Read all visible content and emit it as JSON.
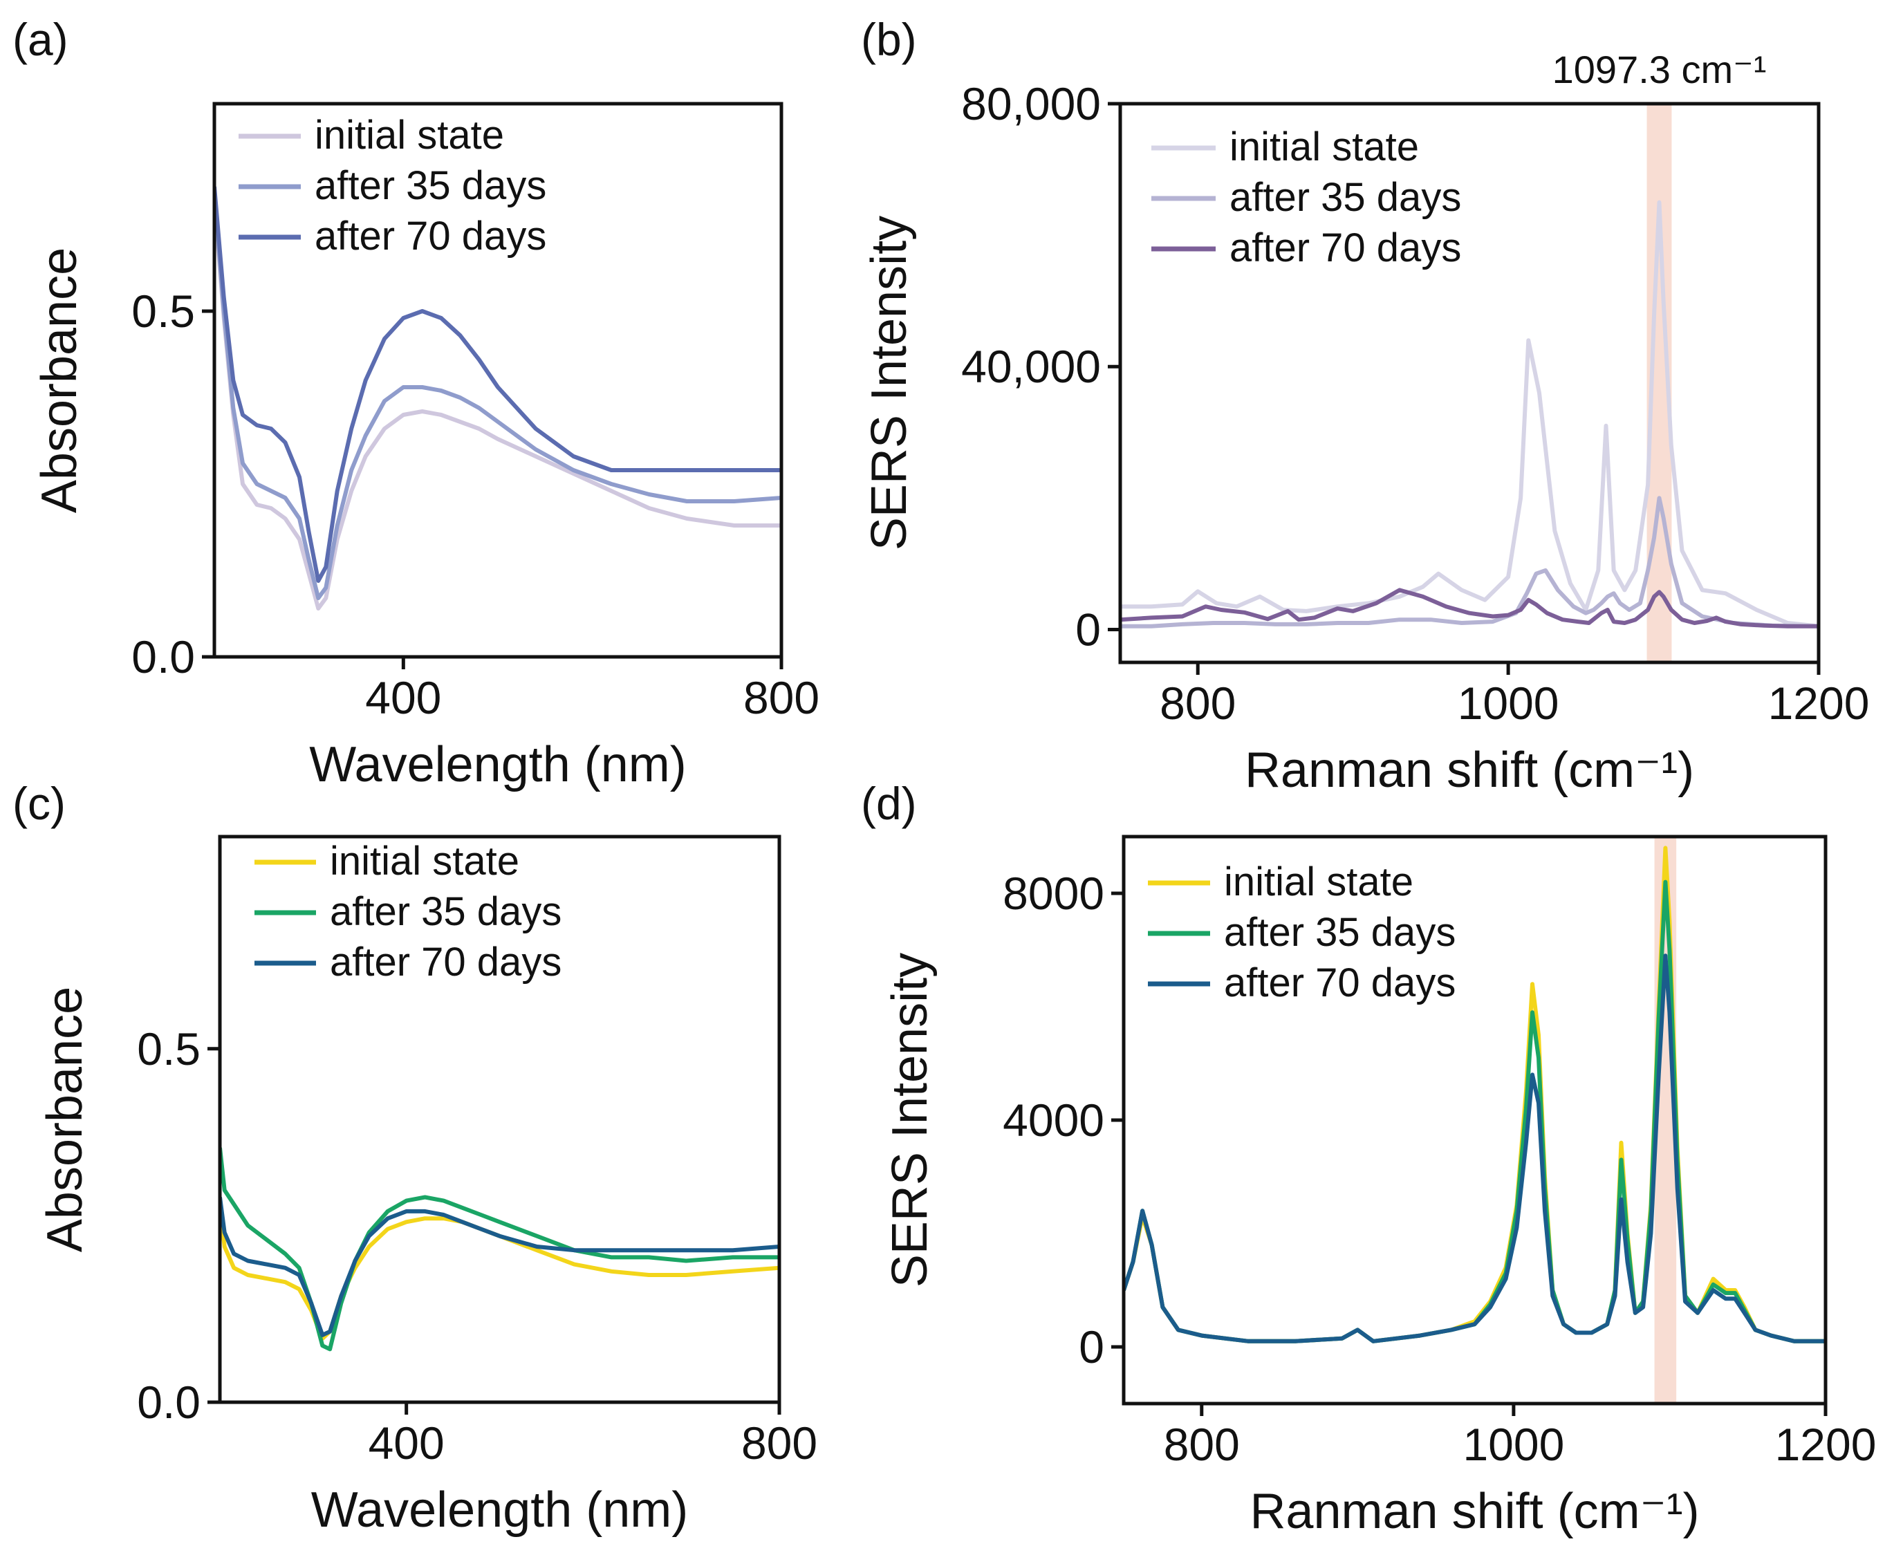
{
  "chart_data": [
    {
      "panel": "(a)",
      "type": "line",
      "xlabel": "Wavelength (nm)",
      "ylabel": "Absorbance",
      "xlim": [
        200,
        800
      ],
      "ylim": [
        0,
        0.8
      ],
      "xticks": [
        400,
        800
      ],
      "yticks": [
        0.0,
        0.5
      ],
      "ytick_labels": [
        "0.0",
        "0.5"
      ],
      "legend": "top-left",
      "series": [
        {
          "name": "initial state",
          "color": "#cfc7de",
          "x": [
            200,
            210,
            220,
            230,
            245,
            260,
            275,
            290,
            300,
            310,
            318,
            330,
            345,
            360,
            380,
            400,
            420,
            440,
            460,
            480,
            500,
            540,
            580,
            620,
            660,
            700,
            750,
            800
          ],
          "y": [
            0.66,
            0.49,
            0.35,
            0.25,
            0.22,
            0.215,
            0.2,
            0.17,
            0.12,
            0.07,
            0.085,
            0.17,
            0.24,
            0.29,
            0.33,
            0.35,
            0.355,
            0.35,
            0.34,
            0.33,
            0.315,
            0.29,
            0.265,
            0.24,
            0.215,
            0.2,
            0.19,
            0.19
          ]
        },
        {
          "name": "after 35 days",
          "color": "#8f9ccc",
          "x": [
            200,
            210,
            220,
            230,
            245,
            260,
            275,
            290,
            300,
            310,
            318,
            330,
            345,
            360,
            380,
            400,
            420,
            440,
            460,
            480,
            500,
            540,
            580,
            620,
            660,
            700,
            750,
            800
          ],
          "y": [
            0.67,
            0.5,
            0.36,
            0.28,
            0.25,
            0.24,
            0.23,
            0.2,
            0.14,
            0.085,
            0.1,
            0.19,
            0.27,
            0.32,
            0.37,
            0.39,
            0.39,
            0.385,
            0.375,
            0.36,
            0.34,
            0.3,
            0.27,
            0.25,
            0.235,
            0.225,
            0.225,
            0.23
          ]
        },
        {
          "name": "after 70 days",
          "color": "#5b6cb0",
          "x": [
            200,
            210,
            220,
            230,
            245,
            260,
            275,
            290,
            300,
            310,
            318,
            330,
            345,
            360,
            380,
            400,
            420,
            440,
            460,
            480,
            500,
            540,
            580,
            620,
            660,
            700,
            750,
            800
          ],
          "y": [
            0.68,
            0.52,
            0.4,
            0.35,
            0.335,
            0.33,
            0.31,
            0.26,
            0.18,
            0.11,
            0.13,
            0.24,
            0.33,
            0.4,
            0.46,
            0.49,
            0.5,
            0.49,
            0.465,
            0.43,
            0.39,
            0.33,
            0.29,
            0.27,
            0.27,
            0.27,
            0.27,
            0.27
          ]
        }
      ]
    },
    {
      "panel": "(b)",
      "type": "line",
      "xlabel": "Ranman shift (cm⁻¹)",
      "ylabel": "SERS Intensity",
      "xlim": [
        750,
        1200
      ],
      "ylim": [
        -5000,
        80000
      ],
      "xticks": [
        800,
        1000,
        1200
      ],
      "yticks": [
        0,
        40000,
        80000
      ],
      "ytick_labels": [
        "0",
        "40,000",
        "80,000"
      ],
      "legend": "top-left",
      "highlight": {
        "center": 1097.3,
        "width": 16,
        "color": "#f8ddd3"
      },
      "annotation": "1097.3 cm⁻¹",
      "series": [
        {
          "name": "initial state",
          "color": "#d6d4e6",
          "x": [
            750,
            770,
            790,
            800,
            812,
            825,
            840,
            855,
            870,
            890,
            910,
            930,
            945,
            955,
            970,
            985,
            1000,
            1008,
            1013,
            1020,
            1030,
            1040,
            1050,
            1058,
            1063,
            1068,
            1075,
            1082,
            1090,
            1094,
            1097.3,
            1100,
            1105,
            1112,
            1125,
            1140,
            1160,
            1180,
            1200
          ],
          "y": [
            3500,
            3500,
            3800,
            5800,
            4000,
            3500,
            5000,
            3000,
            2800,
            3500,
            4000,
            5000,
            6500,
            8500,
            6000,
            4500,
            8000,
            20000,
            44000,
            36000,
            15000,
            7000,
            3000,
            9000,
            31000,
            9000,
            6000,
            9000,
            22000,
            48000,
            65000,
            50000,
            28000,
            12000,
            6000,
            5500,
            3000,
            1000,
            500
          ]
        },
        {
          "name": "after 35 days",
          "color": "#b5b3d3",
          "x": [
            750,
            770,
            790,
            810,
            830,
            850,
            870,
            890,
            910,
            930,
            950,
            970,
            990,
            1005,
            1012,
            1018,
            1024,
            1032,
            1042,
            1050,
            1055,
            1060,
            1064,
            1068,
            1072,
            1078,
            1085,
            1090,
            1094,
            1097.3,
            1100,
            1105,
            1112,
            1125,
            1145,
            1170,
            1200
          ],
          "y": [
            500,
            500,
            800,
            1000,
            1000,
            800,
            800,
            1000,
            1000,
            1500,
            1500,
            1000,
            1200,
            2500,
            5500,
            8500,
            9000,
            6000,
            3500,
            2500,
            3000,
            4000,
            5000,
            5500,
            4000,
            3000,
            4000,
            9000,
            14000,
            20000,
            17000,
            10000,
            4000,
            2000,
            1000,
            600,
            500
          ]
        },
        {
          "name": "after 70 days",
          "color": "#7c5f98",
          "x": [
            750,
            770,
            790,
            805,
            815,
            830,
            845,
            858,
            865,
            875,
            890,
            900,
            915,
            930,
            945,
            960,
            975,
            990,
            1000,
            1008,
            1013,
            1018,
            1025,
            1035,
            1045,
            1052,
            1060,
            1064,
            1068,
            1075,
            1082,
            1090,
            1094,
            1097.3,
            1100,
            1105,
            1112,
            1120,
            1128,
            1134,
            1140,
            1150,
            1165,
            1180,
            1200
          ],
          "y": [
            1500,
            1800,
            2000,
            3500,
            3000,
            2600,
            1600,
            2800,
            1500,
            1800,
            3200,
            2800,
            4000,
            6000,
            5000,
            3500,
            2500,
            2000,
            2200,
            3000,
            4500,
            3800,
            2500,
            1500,
            1200,
            1000,
            2500,
            3000,
            1200,
            1000,
            1500,
            3000,
            5000,
            5700,
            5000,
            3000,
            1500,
            1000,
            1300,
            1800,
            1200,
            800,
            600,
            500,
            500
          ]
        }
      ]
    },
    {
      "panel": "(c)",
      "type": "line",
      "xlabel": "Wavelength (nm)",
      "ylabel": "Absorbance",
      "xlim": [
        200,
        800
      ],
      "ylim": [
        0,
        0.8
      ],
      "xticks": [
        400,
        800
      ],
      "yticks": [
        0.0,
        0.5
      ],
      "ytick_labels": [
        "0.0",
        "0.5"
      ],
      "legend": "top-left",
      "series": [
        {
          "name": "initial state",
          "color": "#f3d51a",
          "x": [
            200,
            205,
            215,
            230,
            250,
            270,
            285,
            298,
            310,
            318,
            330,
            345,
            360,
            380,
            400,
            420,
            440,
            460,
            480,
            500,
            540,
            580,
            620,
            660,
            700,
            750,
            800
          ],
          "y": [
            0.28,
            0.22,
            0.19,
            0.18,
            0.175,
            0.17,
            0.16,
            0.13,
            0.09,
            0.1,
            0.15,
            0.19,
            0.22,
            0.245,
            0.255,
            0.26,
            0.26,
            0.255,
            0.245,
            0.235,
            0.215,
            0.195,
            0.185,
            0.18,
            0.18,
            0.185,
            0.19
          ]
        },
        {
          "name": "after 35 days",
          "color": "#1aa565",
          "x": [
            200,
            205,
            215,
            230,
            250,
            270,
            285,
            298,
            310,
            318,
            330,
            345,
            360,
            380,
            400,
            420,
            440,
            460,
            480,
            500,
            540,
            580,
            620,
            660,
            700,
            750,
            800
          ],
          "y": [
            0.36,
            0.3,
            0.28,
            0.25,
            0.23,
            0.21,
            0.19,
            0.14,
            0.08,
            0.075,
            0.14,
            0.2,
            0.24,
            0.27,
            0.285,
            0.29,
            0.285,
            0.275,
            0.265,
            0.255,
            0.235,
            0.215,
            0.205,
            0.205,
            0.2,
            0.205,
            0.205
          ]
        },
        {
          "name": "after 70 days",
          "color": "#1b5c8c",
          "x": [
            200,
            205,
            215,
            230,
            250,
            270,
            285,
            298,
            310,
            318,
            330,
            345,
            360,
            380,
            400,
            420,
            440,
            460,
            480,
            500,
            540,
            580,
            620,
            660,
            700,
            750,
            800
          ],
          "y": [
            0.29,
            0.24,
            0.21,
            0.2,
            0.195,
            0.19,
            0.18,
            0.14,
            0.095,
            0.1,
            0.15,
            0.2,
            0.235,
            0.26,
            0.27,
            0.27,
            0.265,
            0.255,
            0.245,
            0.235,
            0.22,
            0.215,
            0.215,
            0.215,
            0.215,
            0.215,
            0.22
          ]
        }
      ]
    },
    {
      "panel": "(d)",
      "type": "line",
      "xlabel": "Ranman shift (cm⁻¹)",
      "ylabel": "SERS Intensity",
      "xlim": [
        750,
        1200
      ],
      "ylim": [
        -1000,
        9000
      ],
      "xticks": [
        800,
        1000,
        1200
      ],
      "yticks": [
        0,
        4000,
        8000
      ],
      "ytick_labels": [
        "0",
        "4000",
        "8000"
      ],
      "legend": "top-left",
      "highlight": {
        "center": 1097.3,
        "width": 14,
        "color": "#f8ddd3"
      },
      "series": [
        {
          "name": "initial state",
          "color": "#f3d51a",
          "x": [
            750,
            756,
            762,
            768,
            775,
            785,
            800,
            830,
            860,
            890,
            900,
            910,
            940,
            960,
            975,
            985,
            995,
            1002,
            1008,
            1012,
            1016,
            1020,
            1025,
            1032,
            1040,
            1050,
            1060,
            1065,
            1069,
            1073,
            1078,
            1083,
            1088,
            1093,
            1097.3,
            1100,
            1105,
            1110,
            1118,
            1128,
            1136,
            1142,
            1148,
            1155,
            1165,
            1180,
            1200
          ],
          "y": [
            1000,
            1500,
            2300,
            1800,
            700,
            300,
            200,
            100,
            100,
            150,
            300,
            100,
            200,
            300,
            450,
            800,
            1400,
            2500,
            4500,
            6400,
            5500,
            3000,
            1000,
            400,
            250,
            250,
            400,
            1000,
            3600,
            2000,
            600,
            800,
            2500,
            6000,
            8800,
            7500,
            3500,
            900,
            600,
            1200,
            1000,
            1000,
            700,
            300,
            200,
            100,
            100
          ]
        },
        {
          "name": "after 35 days",
          "color": "#1aa565",
          "x": [
            750,
            756,
            762,
            768,
            775,
            785,
            800,
            830,
            860,
            890,
            900,
            910,
            940,
            960,
            975,
            985,
            995,
            1002,
            1008,
            1012,
            1016,
            1020,
            1025,
            1032,
            1040,
            1050,
            1060,
            1065,
            1069,
            1073,
            1078,
            1083,
            1088,
            1093,
            1097.3,
            1100,
            1105,
            1110,
            1118,
            1128,
            1136,
            1142,
            1148,
            1155,
            1165,
            1180,
            1200
          ],
          "y": [
            1000,
            1500,
            2400,
            1800,
            700,
            300,
            200,
            100,
            100,
            150,
            300,
            100,
            200,
            300,
            400,
            750,
            1300,
            2400,
            4200,
            5900,
            5100,
            2800,
            1000,
            400,
            250,
            250,
            400,
            1000,
            3300,
            1900,
            600,
            800,
            2400,
            5800,
            8200,
            7000,
            3300,
            900,
            600,
            1100,
            950,
            950,
            650,
            300,
            200,
            100,
            100
          ]
        },
        {
          "name": "after 70 days",
          "color": "#1b5c8c",
          "x": [
            750,
            756,
            762,
            768,
            775,
            785,
            800,
            830,
            860,
            890,
            900,
            910,
            940,
            960,
            975,
            985,
            995,
            1002,
            1008,
            1012,
            1016,
            1020,
            1025,
            1032,
            1040,
            1050,
            1060,
            1065,
            1069,
            1073,
            1078,
            1083,
            1088,
            1093,
            1097.3,
            1100,
            1105,
            1110,
            1118,
            1128,
            1136,
            1142,
            1148,
            1155,
            1165,
            1180,
            1200
          ],
          "y": [
            1000,
            1500,
            2400,
            1800,
            700,
            300,
            200,
            100,
            100,
            150,
            300,
            100,
            200,
            300,
            400,
            700,
            1200,
            2100,
            3600,
            4800,
            4300,
            2400,
            900,
            400,
            250,
            250,
            400,
            900,
            2600,
            1500,
            600,
            700,
            2000,
            4800,
            6900,
            5900,
            2800,
            800,
            600,
            1000,
            850,
            850,
            600,
            300,
            200,
            100,
            100
          ]
        }
      ]
    }
  ]
}
